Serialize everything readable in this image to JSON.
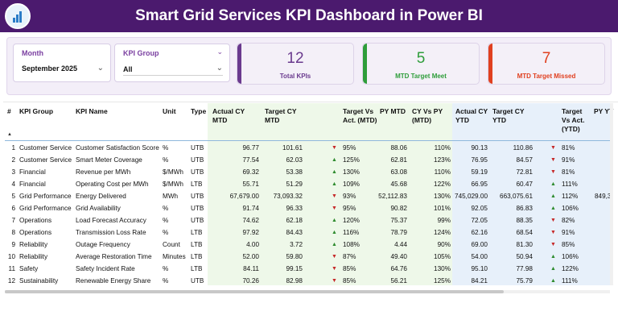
{
  "header": {
    "title": "Smart Grid Services KPI Dashboard in Power BI",
    "logo_icon": "chart-logo-icon"
  },
  "filters": {
    "month": {
      "label": "Month",
      "value": "September 2025"
    },
    "kpi_group": {
      "label": "KPI Group",
      "value": "All"
    }
  },
  "cards": [
    {
      "value": "12",
      "label": "Total KPIs",
      "color": "#6a3a8e"
    },
    {
      "value": "5",
      "label": "MTD Target Meet",
      "color": "#2e9d3a"
    },
    {
      "value": "7",
      "label": "MTD Target Missed",
      "color": "#e04020"
    }
  ],
  "table": {
    "headers": {
      "num": "#",
      "group": "KPI Group",
      "name": "KPI Name",
      "unit": "Unit",
      "type": "Type",
      "act_mtd": "Actual CY MTD",
      "tgt_mtd": "Target CY MTD",
      "tva_mtd": "Target Vs Act. (MTD)",
      "py_mtd": "PY MTD",
      "cyvspy_mtd": "CY Vs PY (MTD)",
      "act_ytd": "Actual CY YTD",
      "tgt_ytd": "Target CY YTD",
      "tva_ytd": "Target Vs Act. (YTD)",
      "py_ytd": "PY YT"
    },
    "rows": [
      {
        "n": "1",
        "group": "Customer Service",
        "name": "Customer Satisfaction Score",
        "unit": "%",
        "type": "UTB",
        "act_mtd": "96.77",
        "tgt_mtd": "101.61",
        "tva_dir": "down",
        "tva_mtd": "95%",
        "py_mtd": "88.06",
        "cyvspy": "110%",
        "act_ytd": "90.13",
        "tgt_ytd": "110.86",
        "tvy_dir": "down",
        "tva_ytd": "81%",
        "py_ytd": ""
      },
      {
        "n": "2",
        "group": "Customer Service",
        "name": "Smart Meter Coverage",
        "unit": "%",
        "type": "UTB",
        "act_mtd": "77.54",
        "tgt_mtd": "62.03",
        "tva_dir": "up",
        "tva_mtd": "125%",
        "py_mtd": "62.81",
        "cyvspy": "123%",
        "act_ytd": "76.95",
        "tgt_ytd": "84.57",
        "tvy_dir": "down",
        "tva_ytd": "91%",
        "py_ytd": ""
      },
      {
        "n": "3",
        "group": "Financial",
        "name": "Revenue per MWh",
        "unit": "$/MWh",
        "type": "UTB",
        "act_mtd": "69.32",
        "tgt_mtd": "53.38",
        "tva_dir": "up",
        "tva_mtd": "130%",
        "py_mtd": "63.08",
        "cyvspy": "110%",
        "act_ytd": "59.19",
        "tgt_ytd": "72.81",
        "tvy_dir": "down",
        "tva_ytd": "81%",
        "py_ytd": ""
      },
      {
        "n": "4",
        "group": "Financial",
        "name": "Operating Cost per MWh",
        "unit": "$/MWh",
        "type": "LTB",
        "act_mtd": "55.71",
        "tgt_mtd": "51.29",
        "tva_dir": "up",
        "tva_mtd": "109%",
        "py_mtd": "45.68",
        "cyvspy": "122%",
        "act_ytd": "66.95",
        "tgt_ytd": "60.47",
        "tvy_dir": "up",
        "tva_ytd": "111%",
        "py_ytd": ""
      },
      {
        "n": "5",
        "group": "Grid Performance",
        "name": "Energy Delivered",
        "unit": "MWh",
        "type": "UTB",
        "act_mtd": "67,679.00",
        "tgt_mtd": "73,093.32",
        "tva_dir": "down",
        "tva_mtd": "93%",
        "py_mtd": "52,112.83",
        "cyvspy": "130%",
        "act_ytd": "745,029.00",
        "tgt_ytd": "663,075.61",
        "tvy_dir": "up",
        "tva_ytd": "112%",
        "py_ytd": "849,3"
      },
      {
        "n": "6",
        "group": "Grid Performance",
        "name": "Grid Availability",
        "unit": "%",
        "type": "UTB",
        "act_mtd": "91.74",
        "tgt_mtd": "96.33",
        "tva_dir": "down",
        "tva_mtd": "95%",
        "py_mtd": "90.82",
        "cyvspy": "101%",
        "act_ytd": "92.05",
        "tgt_ytd": "86.83",
        "tvy_dir": "up",
        "tva_ytd": "106%",
        "py_ytd": ""
      },
      {
        "n": "7",
        "group": "Operations",
        "name": "Load Forecast Accuracy",
        "unit": "%",
        "type": "UTB",
        "act_mtd": "74.62",
        "tgt_mtd": "62.18",
        "tva_dir": "up",
        "tva_mtd": "120%",
        "py_mtd": "75.37",
        "cyvspy": "99%",
        "act_ytd": "72.05",
        "tgt_ytd": "88.35",
        "tvy_dir": "down",
        "tva_ytd": "82%",
        "py_ytd": ""
      },
      {
        "n": "8",
        "group": "Operations",
        "name": "Transmission Loss Rate",
        "unit": "%",
        "type": "LTB",
        "act_mtd": "97.92",
        "tgt_mtd": "84.43",
        "tva_dir": "up",
        "tva_mtd": "116%",
        "py_mtd": "78.79",
        "cyvspy": "124%",
        "act_ytd": "62.16",
        "tgt_ytd": "68.54",
        "tvy_dir": "down",
        "tva_ytd": "91%",
        "py_ytd": ""
      },
      {
        "n": "9",
        "group": "Reliability",
        "name": "Outage Frequency",
        "unit": "Count",
        "type": "LTB",
        "act_mtd": "4.00",
        "tgt_mtd": "3.72",
        "tva_dir": "up",
        "tva_mtd": "108%",
        "py_mtd": "4.44",
        "cyvspy": "90%",
        "act_ytd": "69.00",
        "tgt_ytd": "81.30",
        "tvy_dir": "down",
        "tva_ytd": "85%",
        "py_ytd": ""
      },
      {
        "n": "10",
        "group": "Reliability",
        "name": "Average Restoration Time",
        "unit": "Minutes",
        "type": "LTB",
        "act_mtd": "52.00",
        "tgt_mtd": "59.80",
        "tva_dir": "down",
        "tva_mtd": "87%",
        "py_mtd": "49.40",
        "cyvspy": "105%",
        "act_ytd": "54.00",
        "tgt_ytd": "50.94",
        "tvy_dir": "up",
        "tva_ytd": "106%",
        "py_ytd": ""
      },
      {
        "n": "11",
        "group": "Safety",
        "name": "Safety Incident Rate",
        "unit": "%",
        "type": "LTB",
        "act_mtd": "84.11",
        "tgt_mtd": "99.15",
        "tva_dir": "down",
        "tva_mtd": "85%",
        "py_mtd": "64.76",
        "cyvspy": "130%",
        "act_ytd": "95.10",
        "tgt_ytd": "77.98",
        "tvy_dir": "up",
        "tva_ytd": "122%",
        "py_ytd": ""
      },
      {
        "n": "12",
        "group": "Sustainability",
        "name": "Renewable Energy Share",
        "unit": "%",
        "type": "UTB",
        "act_mtd": "70.26",
        "tgt_mtd": "82.98",
        "tva_dir": "down",
        "tva_mtd": "85%",
        "py_mtd": "56.21",
        "cyvspy": "125%",
        "act_ytd": "84.21",
        "tgt_ytd": "75.79",
        "tvy_dir": "up",
        "tva_ytd": "111%",
        "py_ytd": ""
      }
    ]
  }
}
